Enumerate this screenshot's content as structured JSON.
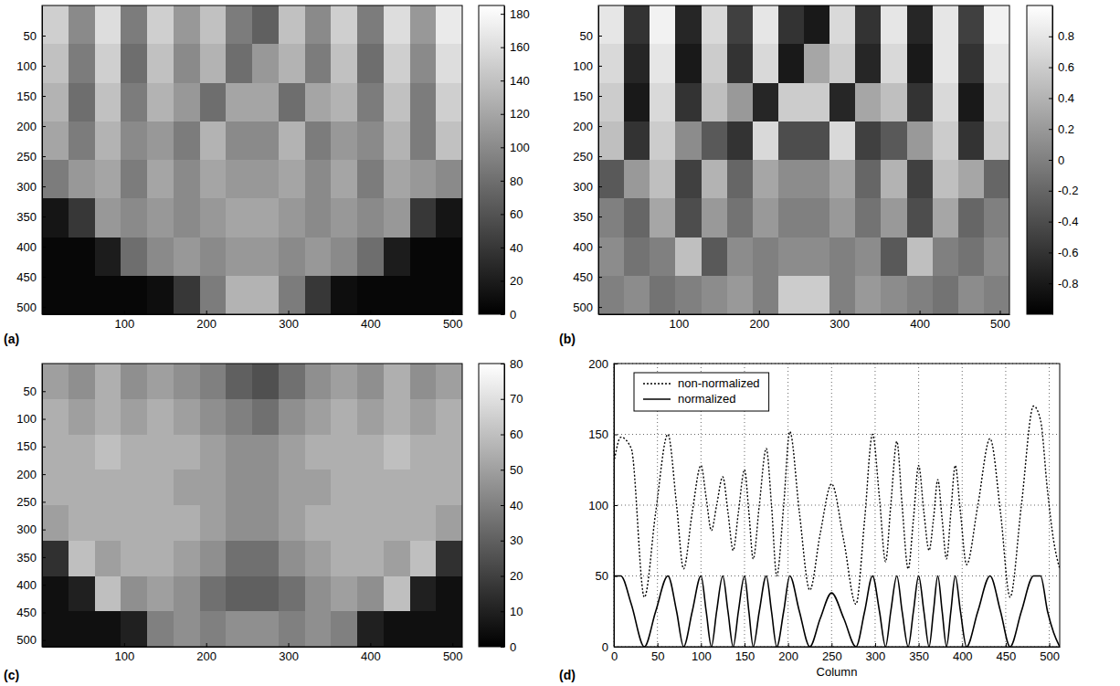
{
  "chart_data": [
    {
      "type": "heatmap",
      "panel": "(a)",
      "color": "gray",
      "xlim": [
        0,
        512
      ],
      "ylim": [
        0,
        512
      ],
      "xticks": [
        100,
        200,
        300,
        400,
        500
      ],
      "yticks": [
        50,
        100,
        150,
        200,
        250,
        300,
        350,
        400,
        450,
        500
      ],
      "x": [
        16,
        48,
        80,
        112,
        144,
        176,
        208,
        240,
        272,
        304,
        336,
        368,
        400,
        432,
        464,
        496
      ],
      "y": [
        32,
        96,
        160,
        224,
        288,
        352,
        416,
        480
      ],
      "cells": [
        [
          150,
          100,
          160,
          90,
          150,
          110,
          140,
          90,
          70,
          140,
          100,
          150,
          90,
          160,
          110,
          170
        ],
        [
          140,
          90,
          150,
          80,
          140,
          100,
          130,
          80,
          110,
          130,
          90,
          140,
          80,
          150,
          100,
          160
        ],
        [
          130,
          80,
          140,
          90,
          130,
          110,
          80,
          120,
          120,
          80,
          120,
          130,
          90,
          140,
          90,
          150
        ],
        [
          120,
          90,
          130,
          100,
          110,
          90,
          130,
          100,
          100,
          130,
          90,
          110,
          100,
          130,
          90,
          140
        ],
        [
          90,
          110,
          120,
          90,
          120,
          100,
          120,
          110,
          110,
          120,
          100,
          120,
          90,
          120,
          110,
          100
        ],
        [
          15,
          40,
          110,
          100,
          110,
          100,
          110,
          120,
          120,
          110,
          100,
          110,
          100,
          110,
          40,
          15
        ],
        [
          5,
          5,
          20,
          80,
          100,
          110,
          100,
          110,
          110,
          100,
          110,
          100,
          80,
          20,
          5,
          5
        ],
        [
          5,
          5,
          5,
          5,
          10,
          40,
          90,
          130,
          130,
          90,
          40,
          10,
          5,
          5,
          5,
          5
        ]
      ],
      "colorbar": {
        "range": [
          0,
          185
        ],
        "ticks": [
          0,
          20,
          40,
          60,
          80,
          100,
          120,
          140,
          160,
          180
        ]
      }
    },
    {
      "type": "heatmap",
      "panel": "(b)",
      "color": "gray",
      "xlim": [
        0,
        512
      ],
      "ylim": [
        0,
        512
      ],
      "xticks": [
        100,
        200,
        300,
        400,
        500
      ],
      "yticks": [
        50,
        100,
        150,
        200,
        250,
        300,
        350,
        400,
        450,
        500
      ],
      "x": [
        16,
        48,
        80,
        112,
        144,
        176,
        208,
        240,
        272,
        304,
        336,
        368,
        400,
        432,
        464,
        496
      ],
      "y": [
        32,
        96,
        160,
        224,
        288,
        352,
        416,
        480
      ],
      "cells": [
        [
          0.8,
          -0.6,
          0.9,
          -0.7,
          0.7,
          -0.5,
          0.8,
          -0.6,
          -0.8,
          0.7,
          -0.6,
          0.8,
          -0.7,
          0.8,
          -0.5,
          0.9
        ],
        [
          0.7,
          -0.7,
          0.8,
          -0.8,
          0.6,
          -0.6,
          0.7,
          -0.8,
          0.3,
          0.6,
          -0.7,
          0.7,
          -0.8,
          0.8,
          -0.6,
          0.8
        ],
        [
          0.6,
          -0.8,
          0.7,
          -0.6,
          0.5,
          0.2,
          -0.7,
          0.6,
          0.6,
          -0.7,
          0.3,
          0.5,
          -0.6,
          0.7,
          -0.8,
          0.7
        ],
        [
          0.5,
          -0.6,
          0.6,
          0.1,
          -0.3,
          -0.6,
          0.7,
          -0.4,
          -0.4,
          0.7,
          -0.5,
          -0.3,
          0.2,
          0.6,
          -0.6,
          0.6
        ],
        [
          -0.3,
          0.2,
          0.5,
          -0.5,
          0.4,
          -0.2,
          0.3,
          0.1,
          0.1,
          0.3,
          -0.2,
          0.4,
          -0.5,
          0.5,
          0.3,
          -0.2
        ],
        [
          0,
          -0.2,
          0.3,
          -0.4,
          0.2,
          -0.1,
          0.2,
          0,
          0,
          0.2,
          -0.1,
          0.2,
          -0.4,
          0.3,
          -0.2,
          0
        ],
        [
          0.1,
          -0.1,
          0,
          0.5,
          -0.3,
          0.1,
          0,
          0.1,
          0.1,
          0,
          0.1,
          -0.3,
          0.5,
          0,
          -0.1,
          0.1
        ],
        [
          0,
          0.1,
          -0.1,
          0,
          0.1,
          0.2,
          0,
          0.6,
          0.6,
          0,
          0.2,
          0.1,
          0,
          -0.1,
          0.1,
          0
        ]
      ],
      "colorbar": {
        "range": [
          -1,
          1
        ],
        "ticks": [
          -0.8,
          -0.6,
          -0.4,
          -0.2,
          0,
          0.2,
          0.4,
          0.6,
          0.8
        ]
      }
    },
    {
      "type": "heatmap",
      "panel": "(c)",
      "color": "gray",
      "xlim": [
        0,
        512
      ],
      "ylim": [
        0,
        512
      ],
      "xticks": [
        100,
        200,
        300,
        400,
        500
      ],
      "yticks": [
        50,
        100,
        150,
        200,
        250,
        300,
        350,
        400,
        450,
        500
      ],
      "x": [
        16,
        48,
        80,
        112,
        144,
        176,
        208,
        240,
        272,
        304,
        336,
        368,
        400,
        432,
        464,
        496
      ],
      "y": [
        32,
        96,
        160,
        224,
        288,
        352,
        416,
        480
      ],
      "cells": [
        [
          50,
          45,
          55,
          45,
          50,
          45,
          40,
          30,
          25,
          35,
          45,
          50,
          45,
          55,
          45,
          50
        ],
        [
          55,
          50,
          55,
          50,
          55,
          50,
          45,
          40,
          35,
          45,
          50,
          55,
          50,
          55,
          50,
          55
        ],
        [
          55,
          55,
          60,
          55,
          55,
          55,
          50,
          45,
          45,
          50,
          55,
          55,
          55,
          60,
          55,
          55
        ],
        [
          55,
          55,
          55,
          55,
          55,
          50,
          50,
          45,
          45,
          50,
          50,
          55,
          55,
          55,
          55,
          55
        ],
        [
          50,
          55,
          55,
          55,
          55,
          55,
          50,
          45,
          45,
          50,
          55,
          55,
          55,
          55,
          55,
          50
        ],
        [
          15,
          60,
          50,
          55,
          55,
          50,
          45,
          35,
          35,
          45,
          50,
          55,
          55,
          50,
          60,
          15
        ],
        [
          5,
          10,
          60,
          45,
          50,
          45,
          35,
          30,
          30,
          35,
          45,
          50,
          45,
          60,
          10,
          5
        ],
        [
          5,
          5,
          5,
          10,
          40,
          45,
          40,
          45,
          45,
          40,
          45,
          40,
          10,
          5,
          5,
          5
        ]
      ],
      "colorbar": {
        "range": [
          0,
          80
        ],
        "ticks": [
          0,
          10,
          20,
          30,
          40,
          50,
          60,
          70,
          80
        ]
      }
    },
    {
      "type": "line",
      "panel": "(d)",
      "x_label": "Column",
      "xlim": [
        0,
        512
      ],
      "ylim": [
        0,
        200
      ],
      "xticks": [
        0,
        50,
        100,
        150,
        200,
        250,
        300,
        350,
        400,
        450,
        500
      ],
      "yticks": [
        0,
        50,
        100,
        150,
        200
      ],
      "grid": true,
      "legend": "upper left",
      "x": [
        0,
        8,
        20,
        35,
        48,
        62,
        72,
        80,
        90,
        100,
        106,
        112,
        118,
        125,
        131,
        137,
        143,
        150,
        155,
        160,
        167,
        175,
        181,
        187,
        195,
        202,
        213,
        225,
        237,
        250,
        264,
        278,
        288,
        297,
        305,
        312,
        318,
        325,
        331,
        338,
        344,
        350,
        356,
        362,
        367,
        372,
        377,
        382,
        387,
        392,
        398,
        405,
        418,
        432,
        444,
        455,
        468,
        482,
        490,
        498,
        505,
        512
      ],
      "series": [
        {
          "name": "non-normalized",
          "color": "#000000",
          "line_style": "dotted",
          "values": [
            130,
            148,
            140,
            35,
            95,
            150,
            100,
            55,
            95,
            128,
            105,
            82,
            100,
            120,
            95,
            68,
            95,
            125,
            95,
            62,
            100,
            140,
            100,
            50,
            100,
            152,
            95,
            40,
            80,
            115,
            75,
            30,
            90,
            150,
            105,
            60,
            100,
            145,
            100,
            55,
            90,
            128,
            95,
            68,
            90,
            118,
            90,
            62,
            95,
            128,
            95,
            58,
            100,
            147,
            95,
            35,
            100,
            170,
            160,
            110,
            75,
            55
          ]
        },
        {
          "name": "normalized",
          "color": "#000000",
          "line_style": "solid",
          "values": [
            50,
            50,
            30,
            0,
            25,
            50,
            25,
            0,
            25,
            50,
            25,
            0,
            25,
            50,
            25,
            0,
            25,
            50,
            25,
            0,
            25,
            50,
            25,
            0,
            25,
            50,
            25,
            0,
            20,
            38,
            20,
            0,
            25,
            50,
            25,
            0,
            25,
            50,
            25,
            0,
            25,
            50,
            25,
            0,
            25,
            50,
            25,
            0,
            25,
            50,
            25,
            0,
            25,
            50,
            25,
            0,
            25,
            50,
            50,
            25,
            10,
            0
          ]
        }
      ]
    }
  ]
}
